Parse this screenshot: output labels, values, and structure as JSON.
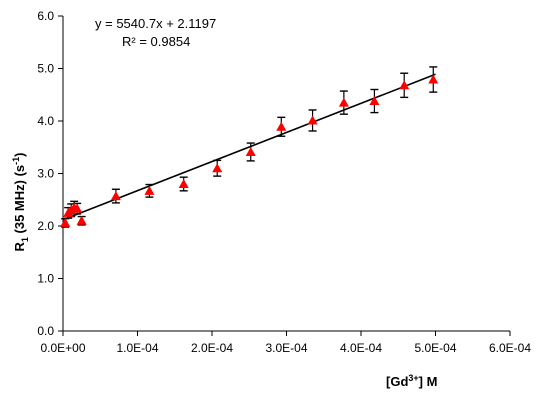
{
  "chart_data": {
    "type": "scatter",
    "title": "",
    "x_title": {
      "main": "[Gd",
      "sup": "3+",
      "tail": "]  M"
    },
    "y_title": {
      "main": "R",
      "sub": "1",
      "mid": " (35 MHz)  (s",
      "sup": "-1",
      "tail": ")"
    },
    "xlim": [
      0,
      0.0006
    ],
    "ylim": [
      0,
      6
    ],
    "x_ticks": [
      0,
      0.0001,
      0.0002,
      0.0003,
      0.0004,
      0.0005,
      0.0006
    ],
    "x_tick_labels": [
      "0.0E+00",
      "1.0E-04",
      "2.0E-04",
      "3.0E-04",
      "4.0E-04",
      "5.0E-04",
      "6.0E-04"
    ],
    "y_ticks": [
      0,
      1,
      2,
      3,
      4,
      5,
      6
    ],
    "y_tick_labels": [
      "0.0",
      "1.0",
      "2.0",
      "3.0",
      "4.0",
      "5.0",
      "6.0"
    ],
    "grid": false,
    "legend": false,
    "marker_color": "#ff0000",
    "line_color": "#000000",
    "points": [
      {
        "x": 3e-06,
        "y": 2.06,
        "err": 0.08
      },
      {
        "x": 7e-06,
        "y": 2.25,
        "err": 0.1
      },
      {
        "x": 1.1e-05,
        "y": 2.3,
        "err": 0.12
      },
      {
        "x": 1.5e-05,
        "y": 2.35,
        "err": 0.12
      },
      {
        "x": 1.9e-05,
        "y": 2.33,
        "err": 0.1
      },
      {
        "x": 2.5e-05,
        "y": 2.1,
        "err": 0.08
      },
      {
        "x": 7.1e-05,
        "y": 2.57,
        "err": 0.13
      },
      {
        "x": 0.000116,
        "y": 2.67,
        "err": 0.12
      },
      {
        "x": 0.000162,
        "y": 2.8,
        "err": 0.13
      },
      {
        "x": 0.000207,
        "y": 3.1,
        "err": 0.15
      },
      {
        "x": 0.000252,
        "y": 3.41,
        "err": 0.17
      },
      {
        "x": 0.000293,
        "y": 3.89,
        "err": 0.18
      },
      {
        "x": 0.000335,
        "y": 4.01,
        "err": 0.2
      },
      {
        "x": 0.000377,
        "y": 4.35,
        "err": 0.22
      },
      {
        "x": 0.000418,
        "y": 4.38,
        "err": 0.22
      },
      {
        "x": 0.000458,
        "y": 4.68,
        "err": 0.23
      },
      {
        "x": 0.000497,
        "y": 4.79,
        "err": 0.24
      }
    ],
    "trendline": {
      "slope": 5540.7,
      "intercept": 2.1197,
      "x_range": [
        0,
        0.0005
      ],
      "equation_label": "y = 5540.7x  + 2.1197",
      "r2_label": "R² = 0.9854"
    }
  }
}
